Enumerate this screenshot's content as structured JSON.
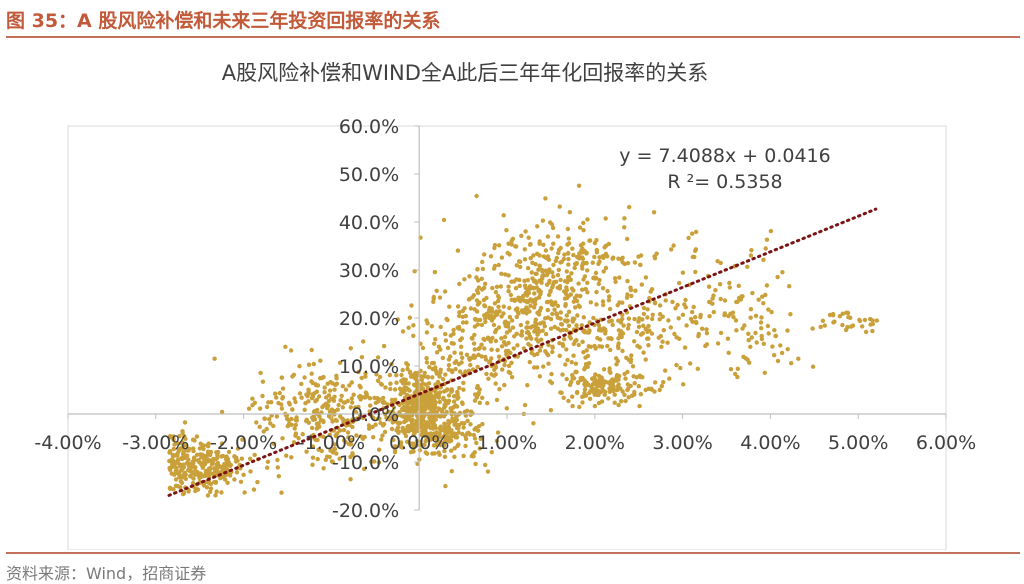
{
  "figure": {
    "title": "图 35：A 股风险补偿和未来三年投资回报率的关系",
    "source": "资料来源：Wind，招商证券"
  },
  "colors": {
    "accent": "#c25a3a",
    "rule": "#c2705a",
    "points": "#c9a03a",
    "trendline": "#7b1515",
    "axis": "#bfbfbf",
    "text": "#404040"
  },
  "chart_data": {
    "type": "scatter",
    "title": "A股风险补偿和WIND全A此后三年年化回报率的关系",
    "xlabel": "",
    "ylabel": "",
    "xlim": [
      -0.04,
      0.06
    ],
    "ylim": [
      -0.2,
      0.6
    ],
    "x_ticks": [
      "-4.00%",
      "-3.00%",
      "-2.00%",
      "-1.00%",
      "0.00%",
      "1.00%",
      "2.00%",
      "3.00%",
      "4.00%",
      "5.00%",
      "6.00%"
    ],
    "y_ticks": [
      "-20.0%",
      "-10.0%",
      "0.0%",
      "10.0%",
      "20.0%",
      "30.0%",
      "40.0%",
      "50.0%",
      "60.0%"
    ],
    "grid": false,
    "legend": "none",
    "trendline": {
      "type": "linear",
      "slope": 7.4088,
      "intercept": 0.0416,
      "r2": 0.5358,
      "x_range": [
        -0.0285,
        0.052
      ],
      "equation_label": "y = 7.4088x + 0.0416",
      "r2_label": "R ²= 0.5358"
    },
    "series": [
      {
        "point_count": 2400,
        "clusters": [
          {
            "x": -0.025,
            "y": -0.11,
            "sx": 0.0028,
            "sy": 0.03,
            "n": 300
          },
          {
            "x": -0.01,
            "y": 0.0,
            "sx": 0.0045,
            "sy": 0.055,
            "n": 340
          },
          {
            "x": 0.0,
            "y": 0.01,
            "sx": 0.0018,
            "sy": 0.04,
            "n": 360
          },
          {
            "x": 0.003,
            "y": -0.03,
            "sx": 0.0025,
            "sy": 0.035,
            "n": 160
          },
          {
            "x": 0.005,
            "y": 0.1,
            "sx": 0.004,
            "sy": 0.07,
            "n": 220
          },
          {
            "x": 0.012,
            "y": 0.22,
            "sx": 0.004,
            "sy": 0.03,
            "n": 150
          },
          {
            "x": 0.016,
            "y": 0.31,
            "sx": 0.005,
            "sy": 0.05,
            "n": 280
          },
          {
            "x": 0.02,
            "y": 0.16,
            "sx": 0.008,
            "sy": 0.045,
            "n": 280
          },
          {
            "x": 0.021,
            "y": 0.06,
            "sx": 0.003,
            "sy": 0.018,
            "n": 160
          },
          {
            "x": 0.033,
            "y": 0.26,
            "sx": 0.004,
            "sy": 0.07,
            "n": 70
          },
          {
            "x": 0.039,
            "y": 0.17,
            "sx": 0.003,
            "sy": 0.045,
            "n": 50
          },
          {
            "x": 0.049,
            "y": 0.19,
            "sx": 0.002,
            "sy": 0.012,
            "n": 30
          }
        ]
      }
    ]
  }
}
